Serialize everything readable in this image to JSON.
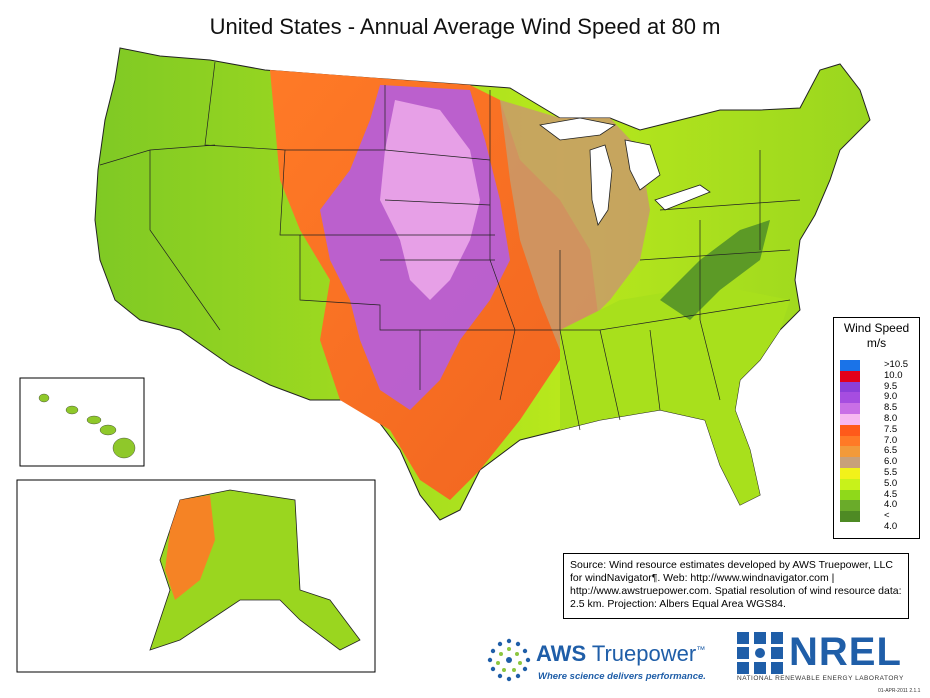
{
  "title": "United States - Annual Average Wind Speed at 80 m",
  "legend": {
    "title_line1": "Wind Speed",
    "title_line2": "m/s",
    "items": [
      {
        "label": ">10.5",
        "color": "#1a73e8"
      },
      {
        "label": "10.0",
        "color": "#e3001b"
      },
      {
        "label": "9.5",
        "color": "#8c3fd9"
      },
      {
        "label": "9.0",
        "color": "#a64de0"
      },
      {
        "label": "8.5",
        "color": "#c96fe6"
      },
      {
        "label": "8.0",
        "color": "#f7b8f0"
      },
      {
        "label": "7.5",
        "color": "#ff5a1a"
      },
      {
        "label": "7.0",
        "color": "#ff7a26"
      },
      {
        "label": "6.5",
        "color": "#f29a3a"
      },
      {
        "label": "6.0",
        "color": "#c8a07a"
      },
      {
        "label": "5.5",
        "color": "#f2f21a"
      },
      {
        "label": "5.0",
        "color": "#c8f21a"
      },
      {
        "label": "4.5",
        "color": "#8fd91a"
      },
      {
        "label": "4.0",
        "color": "#6aab2a"
      },
      {
        "label": "< 4.0",
        "color": "#4e8a24"
      }
    ]
  },
  "source_text": "Source: Wind resource estimates developed by AWS Truepower, LLC for windNavigator¶. Web: http://www.windnavigator.com | http://www.awstruepower.com. Spatial resolution of wind resource data: 2.5 km. Projection: Albers Equal Area WGS84.",
  "aws": {
    "name_bold": "AWS",
    "name_rest": " Truepower",
    "tm": "™",
    "tagline": "Where science delivers performance."
  },
  "nrel": {
    "name": "NREL",
    "subtitle": "NATIONAL RENEWABLE ENERGY LABORATORY"
  },
  "date_stamp": "01-APR-2011 2.1.1"
}
